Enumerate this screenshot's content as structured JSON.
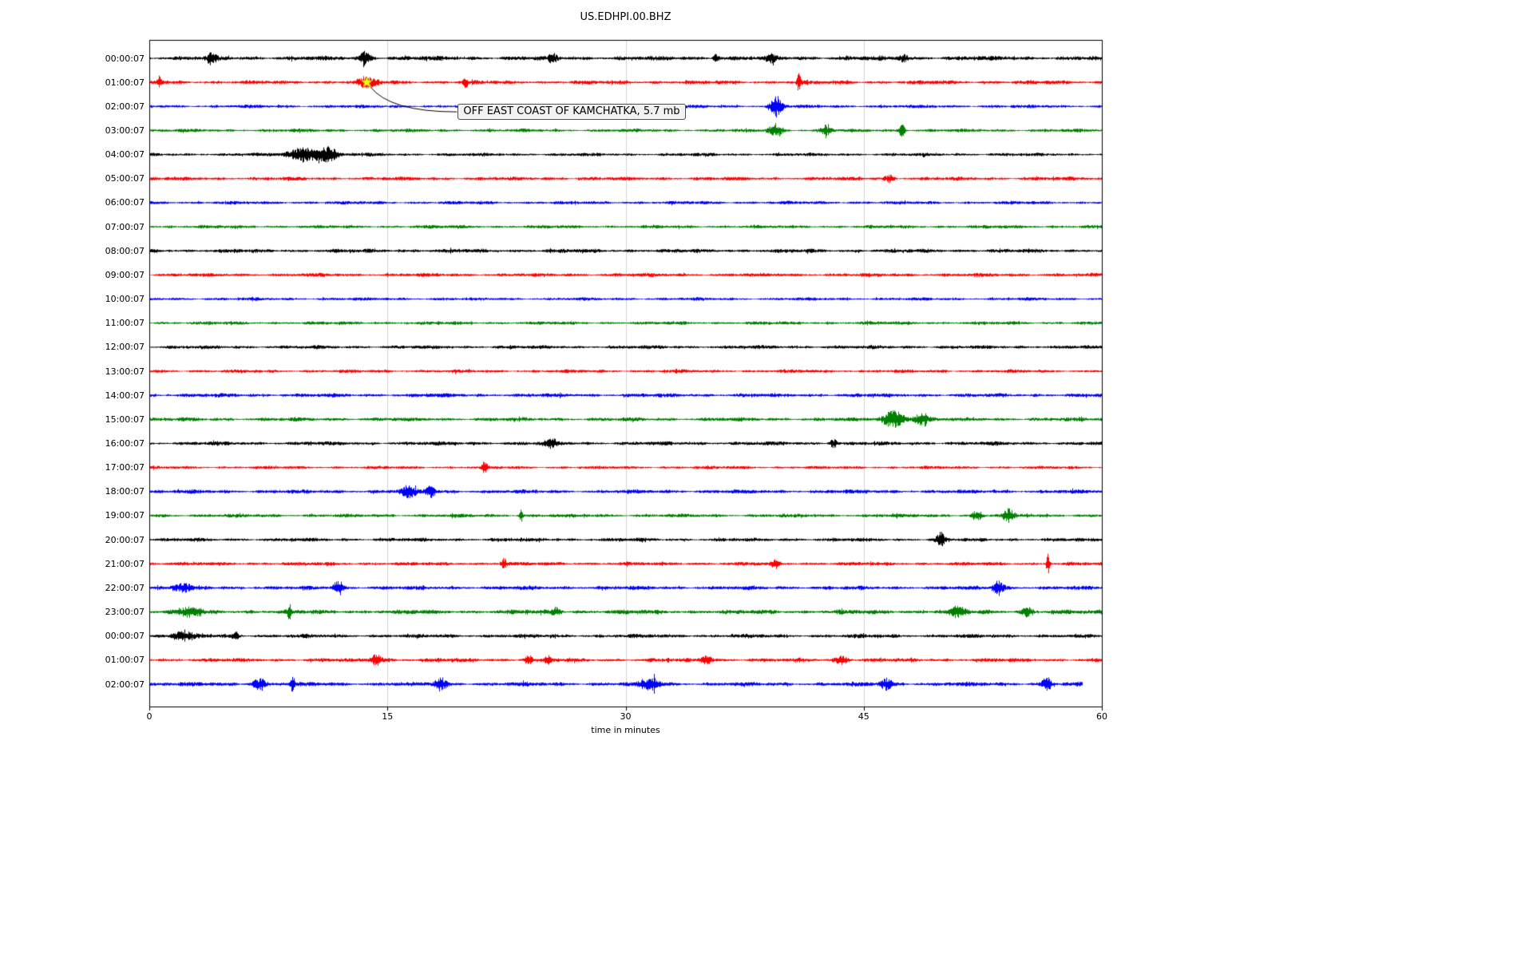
{
  "chart_data": {
    "type": "line",
    "title": "US.EDHPI.00.BHZ",
    "xlabel": "time in minutes",
    "xlim": [
      0,
      60
    ],
    "xticks": [
      0,
      15,
      30,
      45,
      60
    ],
    "grid_x": [
      15,
      30,
      45
    ],
    "grid_on": true,
    "palette": {
      "k": "#000000",
      "r": "#ff0000",
      "b": "#0000ff",
      "g": "#008000"
    },
    "annotation": {
      "text": "OFF EAST COAST OF KAMCHATKA, 5.7 mb",
      "trace_label": "01:00:07",
      "trace_index": 1,
      "x_minutes": 13.7,
      "marker": "yellow-star",
      "marker_color": "#ffff00"
    },
    "traces": [
      {
        "label": "00:00:07",
        "color": "k",
        "amp": 3.2,
        "end": 60,
        "spikes": [
          [
            3.9,
            6,
            0.3
          ],
          [
            13.6,
            8,
            0.35
          ],
          [
            25.4,
            5,
            0.25
          ],
          [
            35.7,
            5,
            0.2
          ],
          [
            39.2,
            4,
            0.3
          ],
          [
            47.5,
            4,
            0.3
          ]
        ]
      },
      {
        "label": "01:00:07",
        "color": "r",
        "amp": 2.8,
        "end": 60,
        "spikes": [
          [
            0.6,
            7,
            0.15
          ],
          [
            13.7,
            6,
            0.6
          ],
          [
            19.9,
            6,
            0.15
          ],
          [
            40.9,
            11,
            0.12
          ]
        ]
      },
      {
        "label": "02:00:07",
        "color": "b",
        "amp": 2.4,
        "end": 60,
        "spikes": [
          [
            39.5,
            13,
            0.35
          ]
        ]
      },
      {
        "label": "03:00:07",
        "color": "g",
        "amp": 2.4,
        "end": 60,
        "spikes": [
          [
            39.4,
            8,
            0.4
          ],
          [
            42.6,
            6,
            0.3
          ],
          [
            47.4,
            8,
            0.18
          ]
        ]
      },
      {
        "label": "04:00:07",
        "color": "k",
        "amp": 2.4,
        "end": 60,
        "spikes": [
          [
            9.9,
            9,
            1.1
          ],
          [
            11.3,
            7,
            0.5
          ]
        ]
      },
      {
        "label": "05:00:07",
        "color": "r",
        "amp": 2.6,
        "end": 60,
        "spikes": [
          [
            46.6,
            4,
            0.3
          ]
        ]
      },
      {
        "label": "06:00:07",
        "color": "b",
        "amp": 2.4,
        "end": 60,
        "spikes": []
      },
      {
        "label": "07:00:07",
        "color": "g",
        "amp": 2.4,
        "end": 60,
        "spikes": []
      },
      {
        "label": "08:00:07",
        "color": "k",
        "amp": 2.8,
        "end": 60,
        "spikes": []
      },
      {
        "label": "09:00:07",
        "color": "r",
        "amp": 2.6,
        "end": 60,
        "spikes": []
      },
      {
        "label": "10:00:07",
        "color": "b",
        "amp": 2.2,
        "end": 60,
        "spikes": []
      },
      {
        "label": "11:00:07",
        "color": "g",
        "amp": 2.4,
        "end": 60,
        "spikes": []
      },
      {
        "label": "12:00:07",
        "color": "k",
        "amp": 2.6,
        "end": 60,
        "spikes": []
      },
      {
        "label": "13:00:07",
        "color": "r",
        "amp": 2.4,
        "end": 60,
        "spikes": []
      },
      {
        "label": "14:00:07",
        "color": "b",
        "amp": 2.8,
        "end": 60,
        "spikes": []
      },
      {
        "label": "15:00:07",
        "color": "g",
        "amp": 2.8,
        "end": 60,
        "spikes": [
          [
            46.9,
            10,
            0.7
          ],
          [
            48.6,
            6,
            0.5
          ]
        ]
      },
      {
        "label": "16:00:07",
        "color": "k",
        "amp": 2.8,
        "end": 60,
        "spikes": [
          [
            25.3,
            5,
            0.35
          ],
          [
            43.1,
            5,
            0.25
          ]
        ]
      },
      {
        "label": "17:00:07",
        "color": "r",
        "amp": 2.2,
        "end": 60,
        "spikes": [
          [
            21.1,
            6,
            0.18
          ]
        ]
      },
      {
        "label": "18:00:07",
        "color": "b",
        "amp": 2.8,
        "end": 60,
        "spikes": [
          [
            16.3,
            6,
            0.5
          ],
          [
            17.7,
            7,
            0.3
          ]
        ]
      },
      {
        "label": "19:00:07",
        "color": "g",
        "amp": 2.6,
        "end": 60,
        "spikes": [
          [
            23.4,
            7,
            0.12
          ],
          [
            52.1,
            6,
            0.3
          ],
          [
            54.1,
            7,
            0.35
          ]
        ]
      },
      {
        "label": "20:00:07",
        "color": "k",
        "amp": 2.6,
        "end": 60,
        "spikes": [
          [
            49.8,
            9,
            0.25
          ]
        ]
      },
      {
        "label": "21:00:07",
        "color": "r",
        "amp": 2.6,
        "end": 60,
        "spikes": [
          [
            22.3,
            7,
            0.18
          ],
          [
            39.4,
            5,
            0.2
          ],
          [
            56.6,
            13,
            0.1
          ]
        ]
      },
      {
        "label": "22:00:07",
        "color": "b",
        "amp": 2.8,
        "end": 60,
        "spikes": [
          [
            2.1,
            5,
            0.5
          ],
          [
            11.9,
            8,
            0.35
          ],
          [
            53.5,
            10,
            0.3
          ]
        ]
      },
      {
        "label": "23:00:07",
        "color": "g",
        "amp": 3.2,
        "end": 60,
        "spikes": [
          [
            2.6,
            6,
            0.6
          ],
          [
            8.8,
            9,
            0.12
          ],
          [
            25.6,
            5,
            0.3
          ],
          [
            50.9,
            6,
            0.5
          ],
          [
            55.3,
            7,
            0.3
          ]
        ]
      },
      {
        "label": "00:00:07",
        "color": "k",
        "amp": 2.8,
        "end": 60,
        "spikes": [
          [
            2.1,
            5,
            0.7
          ],
          [
            5.4,
            5,
            0.2
          ]
        ]
      },
      {
        "label": "01:00:07",
        "color": "r",
        "amp": 2.8,
        "end": 60,
        "spikes": [
          [
            14.3,
            7,
            0.4
          ],
          [
            23.9,
            6,
            0.25
          ],
          [
            25.1,
            5,
            0.2
          ],
          [
            35.1,
            5,
            0.35
          ],
          [
            43.6,
            5,
            0.4
          ]
        ]
      },
      {
        "label": "02:00:07",
        "color": "b",
        "amp": 3.0,
        "end": 58.8,
        "spikes": [
          [
            6.9,
            7,
            0.4
          ],
          [
            9.0,
            11,
            0.12
          ],
          [
            18.3,
            8,
            0.35
          ],
          [
            31.6,
            8,
            0.5
          ],
          [
            46.4,
            6,
            0.4
          ],
          [
            56.5,
            8,
            0.3
          ]
        ]
      }
    ]
  }
}
